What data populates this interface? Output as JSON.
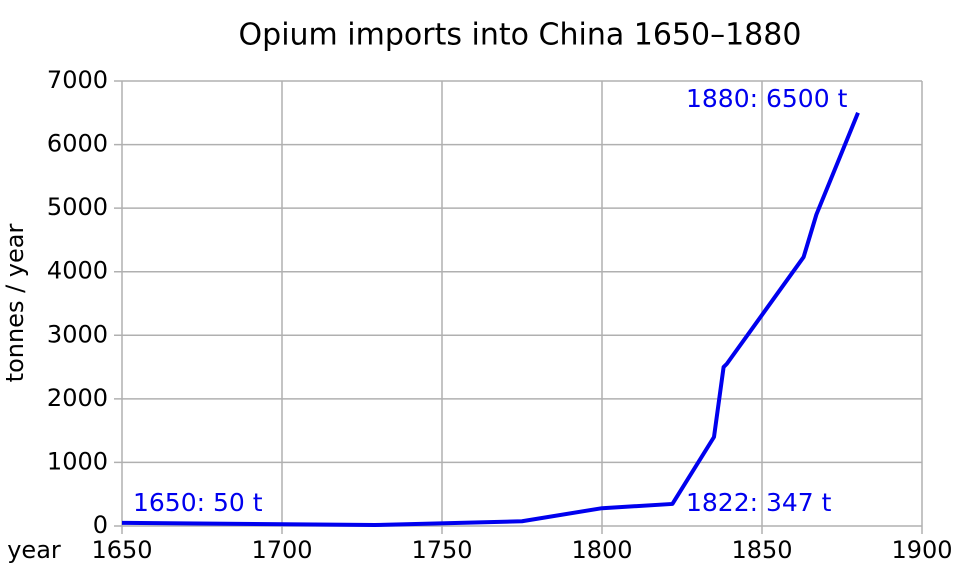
{
  "chart_data": {
    "type": "line",
    "title": "Opium imports into China 1650–1880",
    "x_label": "year",
    "y_label": "tonnes / year",
    "x": [
      1650,
      1729,
      1775,
      1800,
      1822,
      1835,
      1838,
      1839,
      1863,
      1867,
      1880
    ],
    "values": [
      50,
      15,
      75,
      280,
      347,
      1400,
      2500,
      2550,
      4230,
      4900,
      6500
    ],
    "color": "#0000ee",
    "xlim": [
      1650,
      1900
    ],
    "xticks": [
      1650,
      1700,
      1750,
      1800,
      1850,
      1900
    ],
    "ylim": [
      0,
      7000
    ],
    "yticks": [
      0,
      1000,
      2000,
      3000,
      4000,
      5000,
      6000,
      7000
    ],
    "grid": true,
    "annotations": [
      "1650: 50 t",
      "1822: 347 t",
      "1880: 6500 t"
    ]
  }
}
